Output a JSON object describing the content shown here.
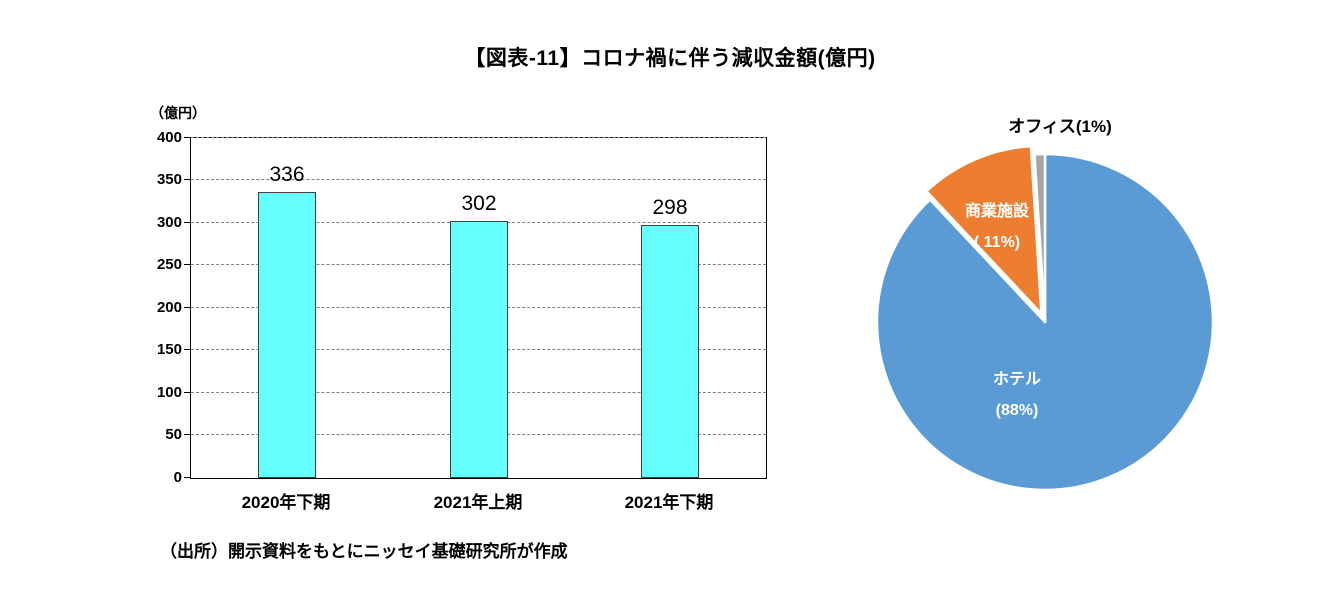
{
  "page": {
    "title": "【図表-11】コロナ禍に伴う減収金額(億円)",
    "source_note": "（出所）開示資料をもとにニッセイ基礎研究所が作成"
  },
  "chart_data": [
    {
      "type": "bar",
      "title": "【図表-11】コロナ禍に伴う減収金額(億円)",
      "unit_label": "（億円）",
      "categories": [
        "2020年下期",
        "2021年上期",
        "2021年下期"
      ],
      "values": [
        336,
        302,
        298
      ],
      "ylim": [
        0,
        400
      ],
      "ytick_step": 50,
      "grid": true,
      "legend": "none",
      "bar_color": "#66FFFF",
      "bar_border_color": "#404040"
    },
    {
      "type": "pie",
      "start_angle_deg": -90,
      "direction": "clockwise",
      "slices": [
        {
          "key": "hotel",
          "label": "ホテル",
          "pct": "(88%)",
          "value": 88,
          "color": "#5B9BD5",
          "label_color": "#FFFFFF",
          "exploded": false
        },
        {
          "key": "retail",
          "label": "商業施設",
          "pct": "( 11%)",
          "value": 11,
          "color": "#ED7D31",
          "label_color": "#FFFFFF",
          "exploded": true
        },
        {
          "key": "office",
          "label": "オフィス",
          "pct": "(1%)",
          "value": 1,
          "color": "#A5A5A5",
          "label_color": "#000000",
          "exploded": false
        }
      ]
    }
  ]
}
